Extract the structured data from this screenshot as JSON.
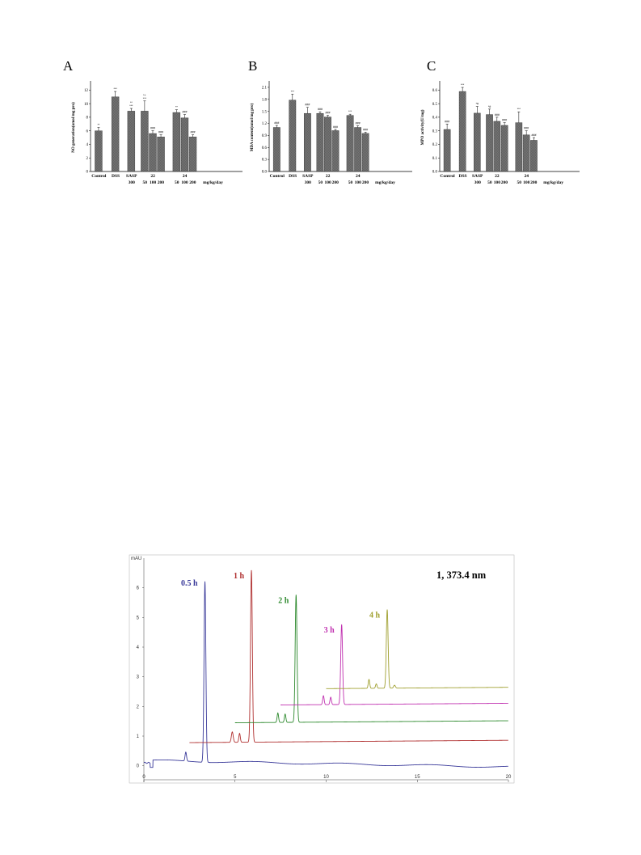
{
  "chart_data": [
    {
      "type": "bar",
      "panel_label": "A",
      "ylabel": "NO generation(umol/mg pro)",
      "ylim": [
        0,
        13
      ],
      "yticks": [
        0,
        2,
        4,
        6,
        8,
        10,
        12
      ],
      "group_labels": [
        "Control",
        "DSS",
        "SASP\n300",
        "22\n50 100 200",
        "24\n50 100 200",
        "mg/kg/day"
      ],
      "groups": [
        {
          "name": "Control",
          "bars": [
            {
              "value": 6.0,
              "err": 0.5,
              "sig": "**"
            }
          ]
        },
        {
          "name": "DSS",
          "bars": [
            {
              "value": 11.0,
              "err": 0.8,
              "sig": "***"
            }
          ]
        },
        {
          "name": "SASP 300",
          "bars": [
            {
              "value": 8.9,
              "err": 0.4,
              "sig": "**\n***"
            }
          ]
        },
        {
          "name": "22",
          "bars": [
            {
              "value": 8.9,
              "err": 1.5,
              "sig": "*+\n***"
            },
            {
              "value": 5.6,
              "err": 0.4,
              "sig": "###"
            },
            {
              "value": 5.1,
              "err": 0.3,
              "sig": "###"
            }
          ]
        },
        {
          "name": "24",
          "bars": [
            {
              "value": 8.7,
              "err": 0.4,
              "sig": "**"
            },
            {
              "value": 7.9,
              "err": 0.5,
              "sig": "###"
            },
            {
              "value": 5.1,
              "err": 0.3,
              "sig": "###"
            }
          ]
        }
      ],
      "x_unit_label": "mg/kg/day"
    },
    {
      "type": "bar",
      "panel_label": "B",
      "ylabel": "MDA content(nmol/mg pro)",
      "ylim": [
        0,
        2.2
      ],
      "yticks": [
        0.0,
        0.3,
        0.6,
        0.9,
        1.2,
        1.5,
        1.8,
        2.1
      ],
      "yticklabels": [
        "0.0",
        "0.3",
        "0.6",
        "0.9",
        "1.2",
        "1.5",
        "1.8",
        "2.1"
      ],
      "groups": [
        {
          "name": "Control",
          "bars": [
            {
              "value": 1.1,
              "err": 0.05,
              "sig": "###"
            }
          ]
        },
        {
          "name": "DSS",
          "bars": [
            {
              "value": 1.78,
              "err": 0.15,
              "sig": "***"
            }
          ]
        },
        {
          "name": "SASP 300",
          "bars": [
            {
              "value": 1.45,
              "err": 0.15,
              "sig": "###"
            }
          ]
        },
        {
          "name": "22",
          "bars": [
            {
              "value": 1.45,
              "err": 0.04,
              "sig": "###"
            },
            {
              "value": 1.36,
              "err": 0.04,
              "sig": "###"
            },
            {
              "value": 1.02,
              "err": 0.03,
              "sig": "###"
            }
          ]
        },
        {
          "name": "24",
          "bars": [
            {
              "value": 1.4,
              "err": 0.03,
              "sig": "***"
            },
            {
              "value": 1.1,
              "err": 0.04,
              "sig": "###"
            },
            {
              "value": 0.95,
              "err": 0.03,
              "sig": "###"
            }
          ]
        }
      ],
      "x_unit_label": "mg/kg/day"
    },
    {
      "type": "bar",
      "panel_label": "C",
      "ylabel": "MPO activity(U/mg)",
      "ylim": [
        0,
        0.65
      ],
      "yticks": [
        0.0,
        0.1,
        0.2,
        0.3,
        0.4,
        0.5,
        0.6
      ],
      "yticklabels": [
        "0.0",
        "0.1",
        "0.2",
        "0.3",
        "0.4",
        "0.5",
        "0.6"
      ],
      "groups": [
        {
          "name": "Control",
          "bars": [
            {
              "value": 0.31,
              "err": 0.04,
              "sig": "###"
            }
          ]
        },
        {
          "name": "DSS",
          "bars": [
            {
              "value": 0.59,
              "err": 0.03,
              "sig": "***"
            }
          ]
        },
        {
          "name": "SASP 300",
          "bars": [
            {
              "value": 0.43,
              "err": 0.05,
              "sig": "*#"
            }
          ]
        },
        {
          "name": "22",
          "bars": [
            {
              "value": 0.42,
              "err": 0.04,
              "sig": "*#"
            },
            {
              "value": 0.37,
              "err": 0.03,
              "sig": "###"
            },
            {
              "value": 0.34,
              "err": 0.02,
              "sig": "###"
            }
          ]
        },
        {
          "name": "24",
          "bars": [
            {
              "value": 0.36,
              "err": 0.08,
              "sig": "***"
            },
            {
              "value": 0.27,
              "err": 0.03,
              "sig": "###"
            },
            {
              "value": 0.23,
              "err": 0.02,
              "sig": "###"
            }
          ]
        }
      ],
      "x_unit_label": "mg/kg/day"
    },
    {
      "type": "line",
      "title": "1, 373.4 nm",
      "ylabel": "mAU",
      "xlim": [
        0,
        20
      ],
      "ylim": [
        -0.5,
        7
      ],
      "xticks": [
        0,
        5,
        10,
        15,
        20
      ],
      "yticks": [
        0,
        1,
        2,
        3,
        4,
        5,
        6
      ],
      "series": [
        {
          "name": "0.5 h",
          "color": "#3a3a9a",
          "x_offset": 0,
          "baseline": 0.1,
          "peaks": [
            [
              2.3,
              0.3,
              0.04
            ],
            [
              3.35,
              6.1,
              0.05
            ]
          ]
        },
        {
          "name": "1 h",
          "color": "#b03030",
          "x_offset": 2.5,
          "baseline": 0.78,
          "peaks": [
            [
              4.85,
              0.35,
              0.05
            ],
            [
              5.25,
              0.3,
              0.04
            ],
            [
              5.9,
              5.8,
              0.05
            ]
          ]
        },
        {
          "name": "2 h",
          "color": "#2e8a2e",
          "x_offset": 5.0,
          "baseline": 1.45,
          "peaks": [
            [
              7.35,
              0.32,
              0.04
            ],
            [
              7.75,
              0.28,
              0.04
            ],
            [
              8.35,
              4.3,
              0.05
            ]
          ]
        },
        {
          "name": "3 h",
          "color": "#c030b0",
          "x_offset": 7.5,
          "baseline": 2.05,
          "peaks": [
            [
              9.85,
              0.3,
              0.04
            ],
            [
              10.25,
              0.25,
              0.04
            ],
            [
              10.85,
              2.7,
              0.05
            ]
          ]
        },
        {
          "name": "4 h",
          "color": "#a0a030",
          "x_offset": 10.0,
          "baseline": 2.6,
          "peaks": [
            [
              12.35,
              0.3,
              0.04
            ],
            [
              12.75,
              0.15,
              0.04
            ],
            [
              13.35,
              2.65,
              0.05
            ],
            [
              13.75,
              0.1,
              0.05
            ]
          ]
        }
      ]
    }
  ]
}
